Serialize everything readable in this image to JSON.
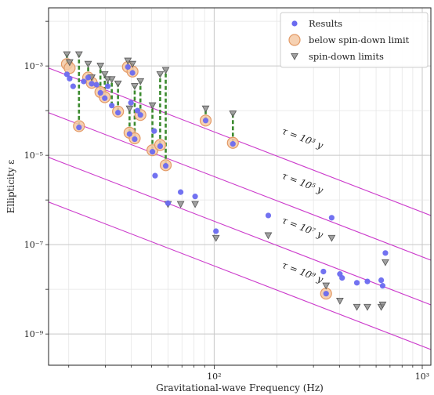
{
  "chart_data": {
    "type": "scatter",
    "title": "",
    "xlabel": "Gravitational-wave Frequency (Hz)",
    "ylabel": "Ellipticity ε",
    "x_scale": "log",
    "y_scale": "log",
    "xlim": [
      16,
      1100
    ],
    "ylim": [
      2e-10,
      0.02
    ],
    "x_ticks": [
      {
        "value": 100,
        "label": "10²"
      },
      {
        "value": 1000,
        "label": "10³"
      }
    ],
    "y_ticks": [
      {
        "value": 1e-09,
        "label": "10⁻⁹"
      },
      {
        "value": 1e-07,
        "label": "10⁻⁷"
      },
      {
        "value": 1e-05,
        "label": "10⁻⁵"
      },
      {
        "value": 0.001,
        "label": "10⁻³"
      }
    ],
    "grid": true,
    "legend": {
      "placement": "top-right",
      "entries": [
        {
          "label": "Results",
          "marker": "circle",
          "color": "#6a6af0"
        },
        {
          "label": "below spin-down limit",
          "marker": "circle-ring",
          "color": "#f1b88a"
        },
        {
          "label": "spin-down limits",
          "marker": "triangle-down",
          "color": "#8a8a8a"
        }
      ]
    },
    "colors": {
      "results": "#6a6af0",
      "below_ring_fill": "#f4c9a4",
      "below_ring_edge": "#e39a66",
      "spindown": "#8a8a8a",
      "connector": "#3b8a2e",
      "tau_line": "#cc3ccc"
    },
    "tau_lines": [
      {
        "label": "τ = 10³ y",
        "points": [
          [
            16,
            0.0009
          ],
          [
            1100,
            4.5e-07
          ]
        ],
        "label_at": [
          210,
          3.1e-05
        ]
      },
      {
        "label": "τ = 10⁵ y",
        "points": [
          [
            16,
            9e-05
          ],
          [
            1100,
            4.5e-08
          ]
        ],
        "label_at": [
          210,
          3.1e-06
        ]
      },
      {
        "label": "τ = 10⁷ y",
        "points": [
          [
            16,
            9e-06
          ],
          [
            1100,
            4.5e-09
          ]
        ],
        "label_at": [
          210,
          3.1e-07
        ]
      },
      {
        "label": "τ = 10⁹ y",
        "points": [
          [
            16,
            9e-07
          ],
          [
            1100,
            4.5e-10
          ]
        ],
        "label_at": [
          210,
          3.1e-08
        ]
      }
    ],
    "series": [
      {
        "name": "Results",
        "points": [
          {
            "x": 19.6,
            "y": 0.00065
          },
          {
            "x": 20.2,
            "y": 0.00052
          },
          {
            "x": 21.0,
            "y": 0.00035
          },
          {
            "x": 22.4,
            "y": 4.2e-05
          },
          {
            "x": 23.6,
            "y": 0.00045
          },
          {
            "x": 24.8,
            "y": 0.00055
          },
          {
            "x": 25.8,
            "y": 0.0004
          },
          {
            "x": 27.2,
            "y": 0.00038
          },
          {
            "x": 28.4,
            "y": 0.00025
          },
          {
            "x": 29.8,
            "y": 0.00019
          },
          {
            "x": 30.8,
            "y": 0.00035
          },
          {
            "x": 32.2,
            "y": 0.00013
          },
          {
            "x": 34.5,
            "y": 9e-05
          },
          {
            "x": 38.5,
            "y": 0.00095
          },
          {
            "x": 39.2,
            "y": 3e-05
          },
          {
            "x": 39.8,
            "y": 0.00015
          },
          {
            "x": 40.5,
            "y": 0.0007
          },
          {
            "x": 41.5,
            "y": 2.3e-05
          },
          {
            "x": 42.8,
            "y": 0.0001
          },
          {
            "x": 44.2,
            "y": 8e-05
          },
          {
            "x": 50.5,
            "y": 1.2e-05
          },
          {
            "x": 51.5,
            "y": 3.5e-05
          },
          {
            "x": 52.0,
            "y": 3.5e-06
          },
          {
            "x": 55.0,
            "y": 1.6e-05
          },
          {
            "x": 58.5,
            "y": 5.8e-06
          },
          {
            "x": 60.0,
            "y": 8.5e-07
          },
          {
            "x": 69.0,
            "y": 1.5e-06
          },
          {
            "x": 81.0,
            "y": 1.2e-06
          },
          {
            "x": 91.0,
            "y": 6e-05
          },
          {
            "x": 102.0,
            "y": 2e-07
          },
          {
            "x": 123.0,
            "y": 1.8e-05
          },
          {
            "x": 182.0,
            "y": 4.5e-07
          },
          {
            "x": 335.0,
            "y": 2.5e-08
          },
          {
            "x": 345.0,
            "y": 8e-09
          },
          {
            "x": 367.0,
            "y": 4e-07
          },
          {
            "x": 402.0,
            "y": 2.2e-08
          },
          {
            "x": 412.0,
            "y": 1.8e-08
          },
          {
            "x": 485.0,
            "y": 1.4e-08
          },
          {
            "x": 545.0,
            "y": 1.5e-08
          },
          {
            "x": 635.0,
            "y": 1.6e-08
          },
          {
            "x": 645.0,
            "y": 1.2e-08
          },
          {
            "x": 665.0,
            "y": 6.5e-08
          }
        ]
      },
      {
        "name": "below spin-down limit",
        "points": [
          {
            "x": 19.6,
            "y": 0.0011
          },
          {
            "x": 20.2,
            "y": 0.0009
          },
          {
            "x": 22.4,
            "y": 4.5e-05
          },
          {
            "x": 24.8,
            "y": 0.00055
          },
          {
            "x": 25.8,
            "y": 0.00042
          },
          {
            "x": 28.4,
            "y": 0.00026
          },
          {
            "x": 29.8,
            "y": 0.0002
          },
          {
            "x": 34.5,
            "y": 9.5e-05
          },
          {
            "x": 38.5,
            "y": 0.00095
          },
          {
            "x": 39.2,
            "y": 3.2e-05
          },
          {
            "x": 40.5,
            "y": 0.00075
          },
          {
            "x": 41.5,
            "y": 2.4e-05
          },
          {
            "x": 44.2,
            "y": 8e-05
          },
          {
            "x": 50.5,
            "y": 1.3e-05
          },
          {
            "x": 55.0,
            "y": 1.7e-05
          },
          {
            "x": 58.5,
            "y": 6e-06
          },
          {
            "x": 91.0,
            "y": 6e-05
          },
          {
            "x": 123.0,
            "y": 1.9e-05
          },
          {
            "x": 345.0,
            "y": 8e-09
          }
        ]
      },
      {
        "name": "spin-down limits",
        "points": [
          {
            "x": 19.6,
            "y": 0.0018
          },
          {
            "x": 20.2,
            "y": 0.0012
          },
          {
            "x": 22.4,
            "y": 0.0018
          },
          {
            "x": 24.8,
            "y": 0.0011
          },
          {
            "x": 25.8,
            "y": 0.00055
          },
          {
            "x": 28.4,
            "y": 0.001
          },
          {
            "x": 29.8,
            "y": 0.00065
          },
          {
            "x": 30.8,
            "y": 0.0005
          },
          {
            "x": 32.2,
            "y": 0.0005
          },
          {
            "x": 34.5,
            "y": 0.0004
          },
          {
            "x": 38.5,
            "y": 0.0013
          },
          {
            "x": 39.2,
            "y": 0.00011
          },
          {
            "x": 40.5,
            "y": 0.0011
          },
          {
            "x": 41.5,
            "y": 0.00035
          },
          {
            "x": 44.2,
            "y": 0.00045
          },
          {
            "x": 50.5,
            "y": 0.00013
          },
          {
            "x": 55.0,
            "y": 0.00065
          },
          {
            "x": 58.5,
            "y": 0.0008
          },
          {
            "x": 60.0,
            "y": 8e-07
          },
          {
            "x": 69.0,
            "y": 8e-07
          },
          {
            "x": 81.0,
            "y": 8e-07
          },
          {
            "x": 91.0,
            "y": 0.00011
          },
          {
            "x": 102.0,
            "y": 1.4e-07
          },
          {
            "x": 123.0,
            "y": 8.5e-05
          },
          {
            "x": 182.0,
            "y": 1.6e-07
          },
          {
            "x": 345.0,
            "y": 1.2e-08
          },
          {
            "x": 367.0,
            "y": 1.4e-07
          },
          {
            "x": 402.0,
            "y": 5.5e-09
          },
          {
            "x": 485.0,
            "y": 4e-09
          },
          {
            "x": 545.0,
            "y": 4e-09
          },
          {
            "x": 635.0,
            "y": 4e-09
          },
          {
            "x": 645.0,
            "y": 4.5e-09
          },
          {
            "x": 665.0,
            "y": 4e-08
          }
        ]
      }
    ],
    "connectors": [
      [
        19.6,
        0.0011,
        0.0018
      ],
      [
        20.2,
        0.0009,
        0.0012
      ],
      [
        22.4,
        4.5e-05,
        0.0018
      ],
      [
        24.8,
        0.00055,
        0.0011
      ],
      [
        25.8,
        0.00042,
        0.00055
      ],
      [
        28.4,
        0.00026,
        0.001
      ],
      [
        29.8,
        0.0002,
        0.00065
      ],
      [
        30.8,
        0.00035,
        0.0005
      ],
      [
        32.2,
        0.00013,
        0.0005
      ],
      [
        34.5,
        9.5e-05,
        0.0004
      ],
      [
        38.5,
        0.00095,
        0.0013
      ],
      [
        39.2,
        3.2e-05,
        0.00011
      ],
      [
        40.5,
        0.00075,
        0.0011
      ],
      [
        41.5,
        2.4e-05,
        0.00035
      ],
      [
        44.2,
        8e-05,
        0.00045
      ],
      [
        50.5,
        1.3e-05,
        0.00013
      ],
      [
        55.0,
        1.7e-05,
        0.00065
      ],
      [
        58.5,
        6e-06,
        0.0008
      ],
      [
        91.0,
        6e-05,
        0.00011
      ],
      [
        123.0,
        1.9e-05,
        8.5e-05
      ]
    ]
  }
}
